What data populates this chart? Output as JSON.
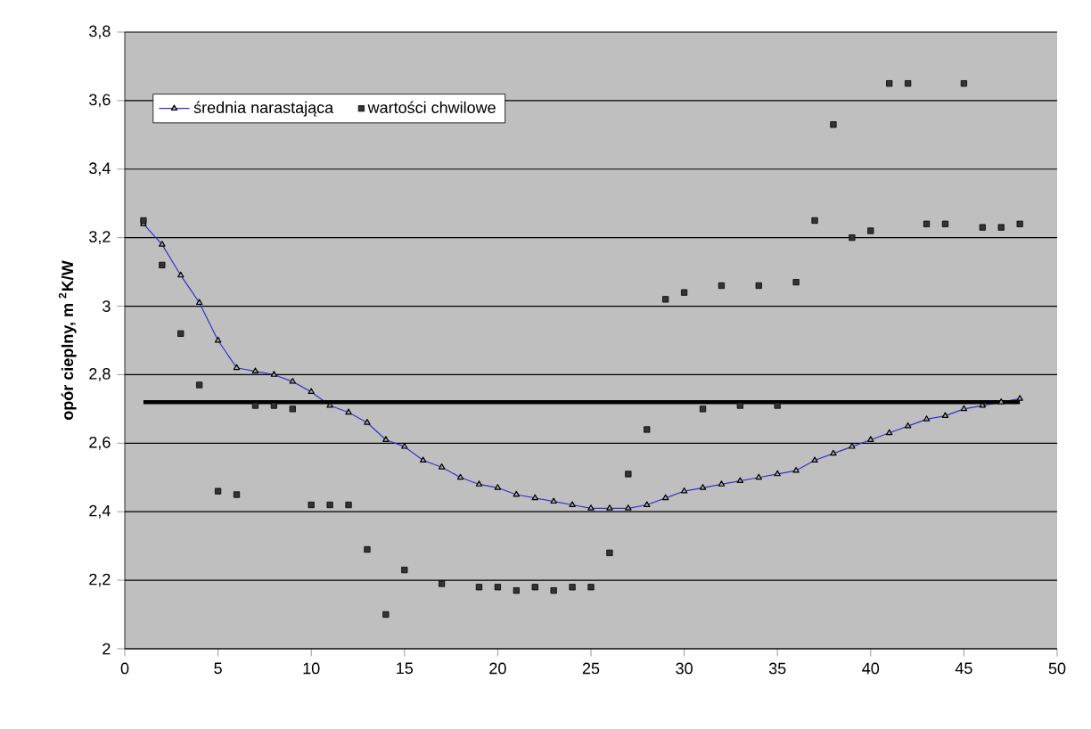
{
  "chart_data": {
    "type": "line",
    "ylabel": "**opór cieplny,  m $^{2}$K/W**",
    "x": [
      1,
      2,
      3,
      4,
      5,
      6,
      7,
      8,
      9,
      10,
      11,
      12,
      13,
      14,
      15,
      16,
      17,
      18,
      19,
      20,
      21,
      22,
      23,
      24,
      25,
      26,
      27,
      28,
      29,
      30,
      31,
      32,
      33,
      34,
      35,
      36,
      37,
      38,
      39,
      40,
      41,
      42,
      43,
      44,
      45,
      46,
      47,
      48
    ],
    "series": [
      {
        "name": "średnia narastająca",
        "type": "line",
        "marker": "triangle",
        "color": "#3333cc",
        "values": [
          3.24,
          3.18,
          3.09,
          3.01,
          2.9,
          2.82,
          2.81,
          2.8,
          2.78,
          2.75,
          2.71,
          2.69,
          2.66,
          2.61,
          2.59,
          2.55,
          2.53,
          2.5,
          2.48,
          2.47,
          2.45,
          2.44,
          2.43,
          2.42,
          2.41,
          2.41,
          2.41,
          2.42,
          2.44,
          2.46,
          2.47,
          2.48,
          2.49,
          2.5,
          2.51,
          2.52,
          2.55,
          2.57,
          2.59,
          2.61,
          2.63,
          2.65,
          2.67,
          2.68,
          2.7,
          2.71,
          2.72,
          2.73
        ]
      },
      {
        "name": "wartości chwilowe",
        "type": "scatter",
        "marker": "square",
        "color": "#333333",
        "values": [
          3.25,
          3.12,
          2.92,
          2.77,
          2.46,
          2.45,
          2.71,
          2.71,
          2.7,
          2.42,
          2.42,
          2.42,
          2.29,
          2.1,
          2.23,
          null,
          2.19,
          null,
          2.18,
          2.18,
          2.17,
          2.18,
          2.17,
          2.18,
          2.18,
          2.28,
          2.51,
          2.64,
          3.02,
          3.04,
          2.7,
          3.06,
          2.71,
          3.06,
          2.71,
          3.07,
          3.25,
          3.53,
          3.2,
          3.22,
          3.65,
          3.65,
          3.24,
          3.24,
          3.65,
          3.23,
          3.23,
          3.24
        ]
      },
      {
        "marker": "none",
        "color": "#000000",
        "x": [
          1,
          48
        ],
        "values": [
          2.72,
          2.72
        ]
      }
    ],
    "xlim": [
      0,
      50
    ],
    "xticks": [
      0,
      5,
      10,
      15,
      20,
      25,
      30,
      35,
      40,
      45,
      50
    ],
    "ylim": [
      2,
      3.8
    ],
    "yticks": [
      2,
      {
        "value": 2.2,
        "label": "2,2"
      },
      {
        "value": 2.4,
        "label": "2,4"
      },
      {
        "value": 2.6,
        "label": "2,6"
      },
      {
        "value": 2.8,
        "label": "2,8"
      },
      3,
      {
        "value": 3.2,
        "label": "3,2"
      },
      {
        "value": 3.4,
        "label": "3,4"
      },
      {
        "value": 3.6,
        "label": "3,6"
      },
      {
        "value": 3.8,
        "label": "3,8"
      }
    ],
    "grid": "y",
    "legend": "top left"
  }
}
